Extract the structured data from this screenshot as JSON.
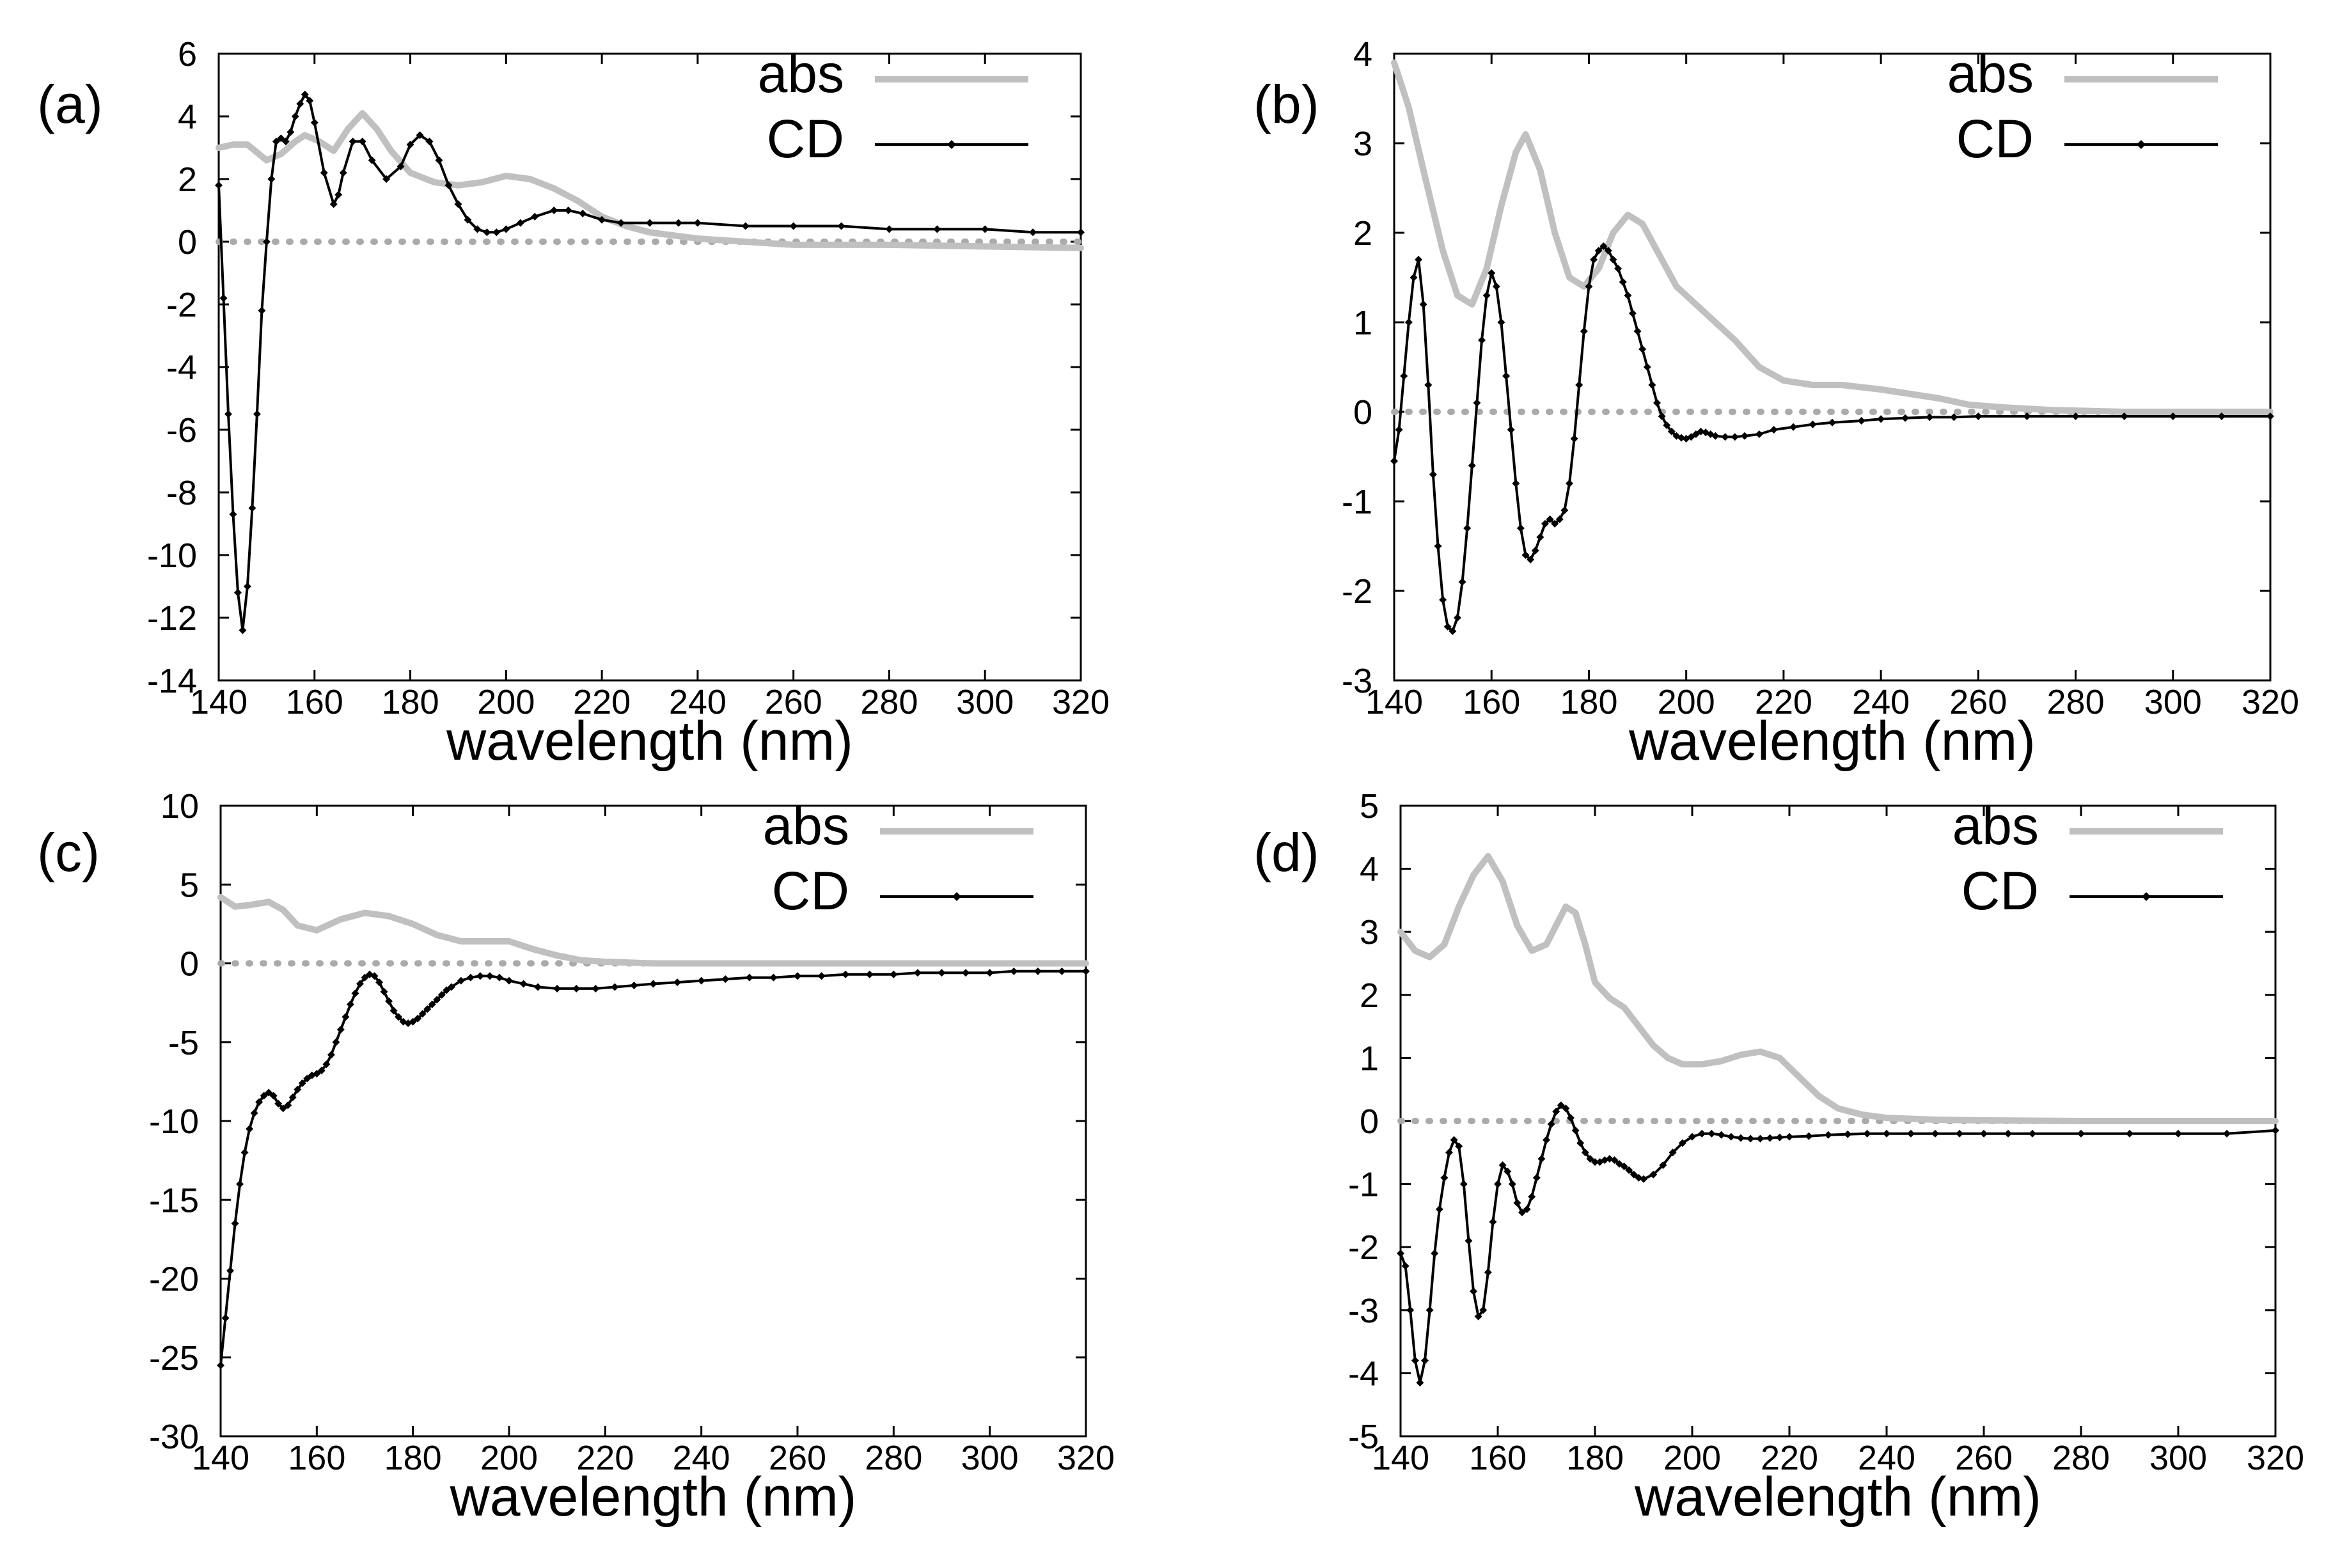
{
  "figure": {
    "colors": {
      "abs": "#c0c0c0",
      "cd": "#000000",
      "zero": "#aaaaaa",
      "frame": "#000000"
    }
  },
  "chart_data": [
    {
      "type": "line",
      "panel_label": "(a)",
      "xlabel": "wavelength (nm)",
      "ylabel": "",
      "xlim": [
        140,
        320
      ],
      "ylim": [
        -14,
        6
      ],
      "xticks": [
        140,
        160,
        180,
        200,
        220,
        240,
        260,
        280,
        300,
        320
      ],
      "yticks": [
        -14,
        -12,
        -10,
        -8,
        -6,
        -4,
        -2,
        0,
        2,
        4,
        6
      ],
      "legend_position": "top-right",
      "legend": [
        "abs",
        "CD"
      ],
      "series": [
        {
          "name": "abs",
          "style": "thick-gray-line",
          "x": [
            140,
            143,
            146,
            150,
            153,
            156,
            158,
            161,
            164,
            167,
            170,
            173,
            176,
            180,
            185,
            190,
            195,
            200,
            205,
            210,
            215,
            220,
            225,
            230,
            240,
            250,
            260,
            280,
            300,
            320
          ],
          "y": [
            3.0,
            3.1,
            3.1,
            2.6,
            2.8,
            3.2,
            3.4,
            3.2,
            2.9,
            3.6,
            4.1,
            3.6,
            2.9,
            2.2,
            1.9,
            1.8,
            1.9,
            2.1,
            2.0,
            1.7,
            1.3,
            0.8,
            0.5,
            0.3,
            0.1,
            0.0,
            -0.1,
            -0.1,
            -0.15,
            -0.2
          ]
        },
        {
          "name": "CD",
          "style": "black-line-with-diamond-markers",
          "x": [
            140,
            141,
            142,
            143,
            144,
            145,
            146,
            147,
            148,
            149,
            150,
            151,
            152,
            153,
            154,
            155,
            156,
            157,
            158,
            159,
            160,
            162,
            164,
            165,
            166,
            168,
            170,
            172,
            175,
            178,
            180,
            182,
            184,
            186,
            188,
            190,
            192,
            194,
            196,
            198,
            200,
            203,
            206,
            210,
            213,
            216,
            220,
            224,
            230,
            236,
            240,
            250,
            260,
            270,
            280,
            290,
            300,
            310,
            320
          ],
          "y": [
            1.8,
            -1.8,
            -5.5,
            -8.7,
            -11.2,
            -12.4,
            -11.0,
            -8.5,
            -5.5,
            -2.2,
            0.0,
            2.0,
            3.2,
            3.3,
            3.2,
            3.5,
            4.0,
            4.4,
            4.7,
            4.5,
            3.8,
            2.2,
            1.2,
            1.5,
            2.2,
            3.2,
            3.2,
            2.6,
            2.0,
            2.4,
            3.1,
            3.4,
            3.2,
            2.6,
            1.8,
            1.2,
            0.7,
            0.4,
            0.3,
            0.3,
            0.4,
            0.6,
            0.8,
            1.0,
            1.0,
            0.9,
            0.7,
            0.6,
            0.6,
            0.6,
            0.6,
            0.5,
            0.5,
            0.5,
            0.4,
            0.4,
            0.4,
            0.3,
            0.3
          ]
        }
      ]
    },
    {
      "type": "line",
      "panel_label": "(b)",
      "xlabel": "wavelength (nm)",
      "ylabel": "",
      "xlim": [
        140,
        320
      ],
      "ylim": [
        -3,
        4
      ],
      "xticks": [
        140,
        160,
        180,
        200,
        220,
        240,
        260,
        280,
        300,
        320
      ],
      "yticks": [
        -3,
        -2,
        -1,
        0,
        1,
        2,
        3,
        4
      ],
      "legend_position": "top-right",
      "legend": [
        "abs",
        "CD"
      ],
      "series": [
        {
          "name": "abs",
          "style": "thick-gray-line",
          "x": [
            140,
            143,
            146,
            150,
            153,
            156,
            159,
            162,
            165,
            167,
            170,
            173,
            176,
            179,
            182,
            185,
            188,
            191,
            194,
            198,
            202,
            206,
            210,
            215,
            220,
            226,
            232,
            240,
            246,
            252,
            258,
            265,
            275,
            290,
            320
          ],
          "y": [
            3.9,
            3.4,
            2.7,
            1.8,
            1.3,
            1.2,
            1.6,
            2.3,
            2.9,
            3.1,
            2.7,
            2.0,
            1.5,
            1.4,
            1.6,
            2.0,
            2.2,
            2.1,
            1.8,
            1.4,
            1.2,
            1.0,
            0.8,
            0.5,
            0.35,
            0.3,
            0.3,
            0.25,
            0.2,
            0.15,
            0.08,
            0.05,
            0.02,
            0.0,
            0.0
          ]
        },
        {
          "name": "CD",
          "style": "black-line-with-diamond-markers",
          "x": [
            140,
            141,
            142,
            143,
            144,
            145,
            146,
            147,
            148,
            149,
            150,
            151,
            152,
            153,
            154,
            155,
            156,
            157,
            158,
            159,
            160,
            161,
            162,
            163,
            164,
            165,
            166,
            167,
            168,
            169,
            170,
            171,
            172,
            173,
            174,
            175,
            176,
            177,
            178,
            179,
            180,
            181,
            182,
            183,
            184,
            185,
            186,
            187,
            188,
            189,
            190,
            191,
            192,
            193,
            194,
            195,
            196,
            197,
            198,
            199,
            200,
            201,
            202,
            203,
            204,
            205,
            206,
            208,
            210,
            212,
            215,
            218,
            222,
            226,
            230,
            236,
            240,
            245,
            250,
            255,
            260,
            270,
            280,
            290,
            300,
            310,
            320
          ],
          "y": [
            -0.55,
            -0.2,
            0.4,
            1.0,
            1.5,
            1.7,
            1.2,
            0.3,
            -0.7,
            -1.5,
            -2.1,
            -2.4,
            -2.45,
            -2.3,
            -1.9,
            -1.3,
            -0.6,
            0.1,
            0.8,
            1.3,
            1.55,
            1.4,
            1.0,
            0.4,
            -0.2,
            -0.8,
            -1.3,
            -1.6,
            -1.65,
            -1.55,
            -1.4,
            -1.25,
            -1.2,
            -1.25,
            -1.2,
            -1.1,
            -0.8,
            -0.3,
            0.3,
            0.9,
            1.4,
            1.7,
            1.8,
            1.85,
            1.8,
            1.7,
            1.6,
            1.45,
            1.3,
            1.1,
            0.9,
            0.7,
            0.5,
            0.3,
            0.1,
            -0.05,
            -0.15,
            -0.22,
            -0.27,
            -0.29,
            -0.3,
            -0.28,
            -0.25,
            -0.22,
            -0.23,
            -0.25,
            -0.27,
            -0.28,
            -0.28,
            -0.27,
            -0.25,
            -0.2,
            -0.17,
            -0.14,
            -0.12,
            -0.1,
            -0.08,
            -0.07,
            -0.06,
            -0.06,
            -0.05,
            -0.05,
            -0.05,
            -0.05,
            -0.05,
            -0.05,
            -0.05
          ]
        }
      ]
    },
    {
      "type": "line",
      "panel_label": "(c)",
      "xlabel": "wavelength (nm)",
      "ylabel": "",
      "xlim": [
        140,
        320
      ],
      "ylim": [
        -30,
        10
      ],
      "xticks": [
        140,
        160,
        180,
        200,
        220,
        240,
        260,
        280,
        300,
        320
      ],
      "yticks": [
        -30,
        -25,
        -20,
        -15,
        -10,
        -5,
        0,
        5,
        10
      ],
      "legend_position": "top-right",
      "legend": [
        "abs",
        "CD"
      ],
      "series": [
        {
          "name": "abs",
          "style": "thick-gray-line",
          "x": [
            140,
            143,
            146,
            150,
            153,
            156,
            160,
            165,
            170,
            175,
            180,
            185,
            190,
            195,
            200,
            205,
            210,
            215,
            220,
            230,
            240,
            260,
            280,
            300,
            320
          ],
          "y": [
            4.2,
            3.6,
            3.7,
            3.9,
            3.4,
            2.4,
            2.1,
            2.8,
            3.2,
            3.0,
            2.5,
            1.8,
            1.4,
            1.4,
            1.4,
            0.9,
            0.5,
            0.2,
            0.1,
            0.0,
            0.0,
            0.0,
            0.0,
            0.0,
            0.0
          ]
        },
        {
          "name": "CD",
          "style": "black-line-with-diamond-markers",
          "x": [
            140,
            141,
            142,
            143,
            144,
            145,
            146,
            147,
            148,
            149,
            150,
            151,
            152,
            153,
            154,
            155,
            156,
            157,
            158,
            159,
            160,
            161,
            162,
            163,
            164,
            165,
            166,
            167,
            168,
            169,
            170,
            171,
            172,
            173,
            174,
            175,
            176,
            177,
            178,
            179,
            180,
            181,
            182,
            183,
            184,
            185,
            186,
            187,
            188,
            190,
            192,
            194,
            196,
            198,
            200,
            203,
            206,
            210,
            214,
            218,
            222,
            226,
            230,
            235,
            240,
            245,
            250,
            255,
            260,
            265,
            270,
            275,
            280,
            285,
            290,
            295,
            300,
            305,
            310,
            315,
            320
          ],
          "y": [
            -25.5,
            -22.5,
            -19.5,
            -16.5,
            -14.0,
            -12.0,
            -10.5,
            -9.5,
            -8.8,
            -8.4,
            -8.2,
            -8.4,
            -8.9,
            -9.2,
            -9.0,
            -8.5,
            -8.0,
            -7.6,
            -7.3,
            -7.1,
            -7.0,
            -6.8,
            -6.4,
            -5.8,
            -5.0,
            -4.2,
            -3.4,
            -2.6,
            -1.9,
            -1.3,
            -0.9,
            -0.7,
            -0.8,
            -1.2,
            -1.8,
            -2.4,
            -3.0,
            -3.4,
            -3.7,
            -3.8,
            -3.7,
            -3.5,
            -3.2,
            -2.9,
            -2.6,
            -2.3,
            -2.0,
            -1.7,
            -1.5,
            -1.1,
            -0.9,
            -0.8,
            -0.8,
            -0.9,
            -1.1,
            -1.3,
            -1.5,
            -1.6,
            -1.6,
            -1.6,
            -1.5,
            -1.4,
            -1.3,
            -1.2,
            -1.1,
            -1.0,
            -0.9,
            -0.9,
            -0.8,
            -0.8,
            -0.7,
            -0.7,
            -0.7,
            -0.6,
            -0.6,
            -0.6,
            -0.6,
            -0.5,
            -0.5,
            -0.5,
            -0.5
          ]
        }
      ]
    },
    {
      "type": "line",
      "panel_label": "(d)",
      "xlabel": "wavelength (nm)",
      "ylabel": "",
      "xlim": [
        140,
        320
      ],
      "ylim": [
        -5,
        5
      ],
      "xticks": [
        140,
        160,
        180,
        200,
        220,
        240,
        260,
        280,
        300,
        320
      ],
      "yticks": [
        -5,
        -4,
        -3,
        -2,
        -1,
        0,
        1,
        2,
        3,
        4,
        5
      ],
      "legend_position": "top-right",
      "legend": [
        "abs",
        "CD"
      ],
      "series": [
        {
          "name": "abs",
          "style": "thick-gray-line",
          "x": [
            140,
            143,
            146,
            149,
            152,
            155,
            158,
            161,
            164,
            167,
            170,
            172,
            174,
            176,
            178,
            180,
            183,
            186,
            189,
            192,
            195,
            198,
            202,
            206,
            210,
            214,
            218,
            222,
            226,
            230,
            235,
            240,
            250,
            260,
            280,
            300,
            320
          ],
          "y": [
            3.0,
            2.7,
            2.6,
            2.8,
            3.4,
            3.9,
            4.2,
            3.8,
            3.1,
            2.7,
            2.8,
            3.1,
            3.4,
            3.3,
            2.8,
            2.2,
            1.95,
            1.8,
            1.5,
            1.2,
            1.0,
            0.9,
            0.9,
            0.95,
            1.05,
            1.1,
            1.0,
            0.7,
            0.4,
            0.2,
            0.1,
            0.05,
            0.02,
            0.01,
            0.0,
            0.0,
            0.0
          ]
        },
        {
          "name": "CD",
          "style": "black-line-with-diamond-markers",
          "x": [
            140,
            141,
            142,
            143,
            144,
            145,
            146,
            147,
            148,
            149,
            150,
            151,
            152,
            153,
            154,
            155,
            156,
            157,
            158,
            159,
            160,
            161,
            162,
            163,
            164,
            165,
            166,
            167,
            168,
            169,
            170,
            171,
            172,
            173,
            174,
            175,
            176,
            177,
            178,
            179,
            180,
            181,
            182,
            183,
            184,
            185,
            186,
            187,
            188,
            189,
            190,
            192,
            194,
            196,
            198,
            200,
            202,
            204,
            206,
            208,
            210,
            212,
            214,
            216,
            218,
            220,
            224,
            228,
            232,
            236,
            240,
            245,
            250,
            255,
            260,
            265,
            270,
            280,
            290,
            300,
            310,
            320
          ],
          "y": [
            -2.1,
            -2.3,
            -3.0,
            -3.8,
            -4.15,
            -3.8,
            -3.0,
            -2.1,
            -1.4,
            -0.9,
            -0.5,
            -0.3,
            -0.4,
            -1.0,
            -1.9,
            -2.7,
            -3.1,
            -3.0,
            -2.4,
            -1.6,
            -1.0,
            -0.7,
            -0.8,
            -1.0,
            -1.3,
            -1.45,
            -1.4,
            -1.2,
            -0.9,
            -0.6,
            -0.3,
            -0.05,
            0.15,
            0.25,
            0.2,
            0.05,
            -0.15,
            -0.35,
            -0.5,
            -0.6,
            -0.65,
            -0.65,
            -0.62,
            -0.6,
            -0.62,
            -0.68,
            -0.72,
            -0.78,
            -0.85,
            -0.9,
            -0.92,
            -0.85,
            -0.7,
            -0.5,
            -0.35,
            -0.25,
            -0.2,
            -0.2,
            -0.22,
            -0.25,
            -0.27,
            -0.28,
            -0.28,
            -0.27,
            -0.26,
            -0.25,
            -0.24,
            -0.22,
            -0.21,
            -0.2,
            -0.2,
            -0.2,
            -0.2,
            -0.2,
            -0.2,
            -0.2,
            -0.2,
            -0.2,
            -0.2,
            -0.2,
            -0.2,
            -0.15
          ]
        }
      ]
    }
  ]
}
